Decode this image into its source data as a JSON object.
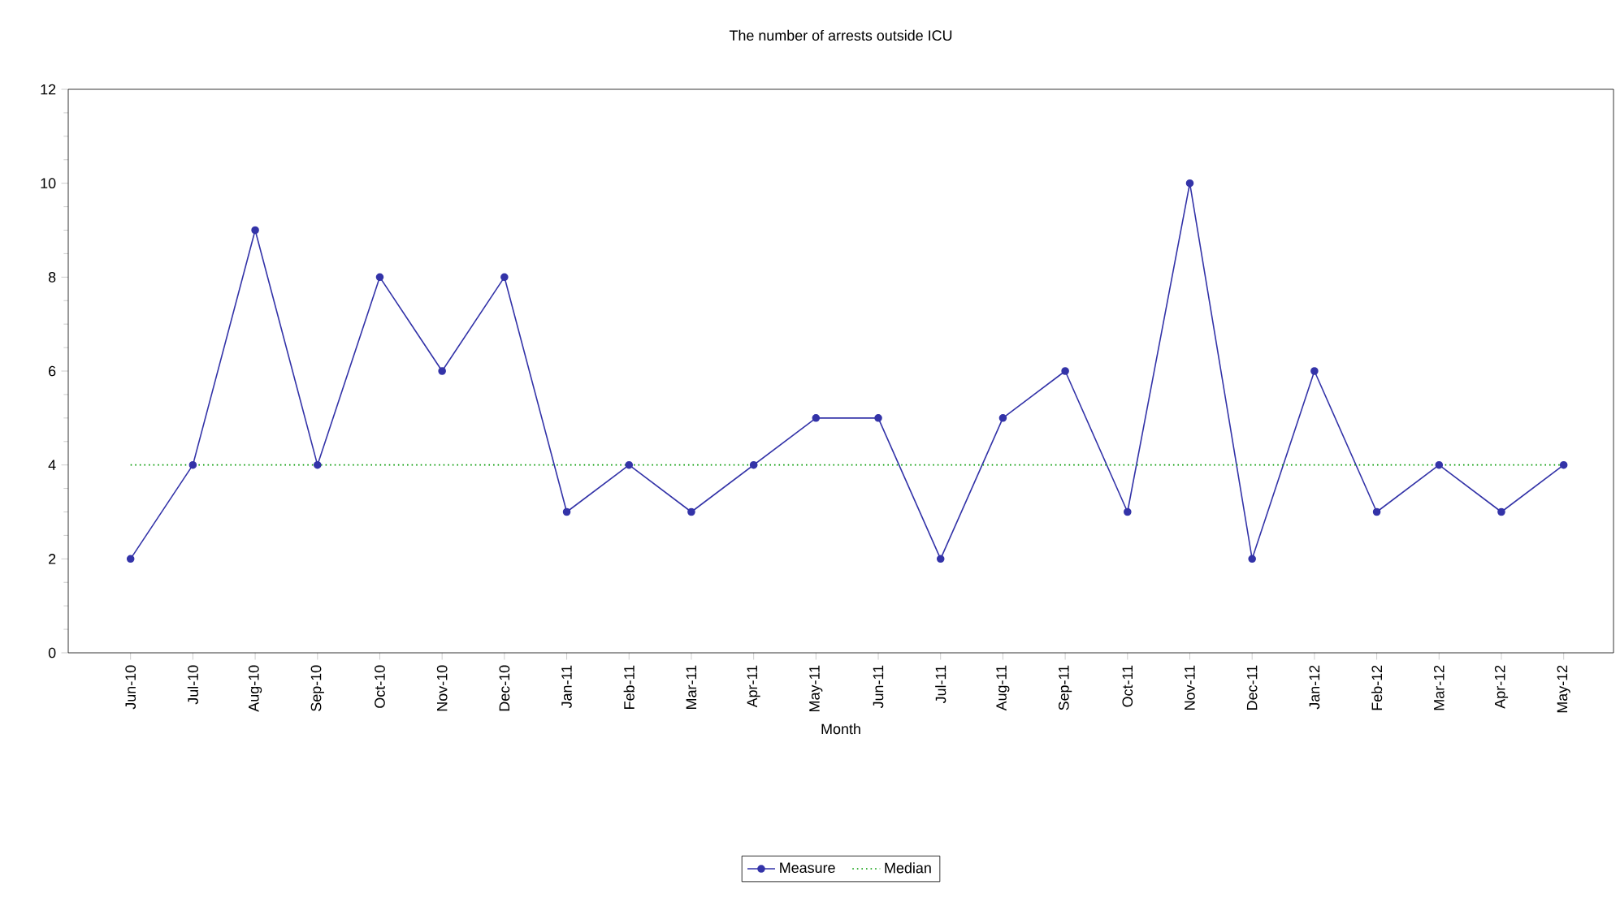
{
  "chart_data": {
    "type": "line",
    "title": "The number of arrests outside ICU",
    "xlabel": "Month",
    "categories": [
      "Jun-10",
      "Jul-10",
      "Aug-10",
      "Sep-10",
      "Oct-10",
      "Nov-10",
      "Dec-10",
      "Jan-11",
      "Feb-11",
      "Mar-11",
      "Apr-11",
      "May-11",
      "Jun-11",
      "Jul-11",
      "Aug-11",
      "Sep-11",
      "Oct-11",
      "Nov-11",
      "Dec-11",
      "Jan-12",
      "Feb-12",
      "Mar-12",
      "Apr-12",
      "May-12"
    ],
    "series": [
      {
        "name": "Measure",
        "color": "#3333a8",
        "marker": "circle",
        "line_style": "solid",
        "values": [
          2,
          4,
          9,
          4,
          8,
          6,
          8,
          3,
          4,
          3,
          4,
          5,
          5,
          2,
          5,
          6,
          3,
          10,
          2,
          6,
          3,
          4,
          3,
          4
        ]
      },
      {
        "name": "Median",
        "color": "#009900",
        "marker": "none",
        "line_style": "dotted",
        "values": [
          4,
          4,
          4,
          4,
          4,
          4,
          4,
          4,
          4,
          4,
          4,
          4,
          4,
          4,
          4,
          4,
          4,
          4,
          4,
          4,
          4,
          4,
          4,
          4
        ]
      }
    ],
    "ylim": [
      0,
      12
    ],
    "yticks": [
      0,
      2,
      4,
      6,
      8,
      10,
      12
    ],
    "grid": false,
    "legend": "bottom"
  }
}
